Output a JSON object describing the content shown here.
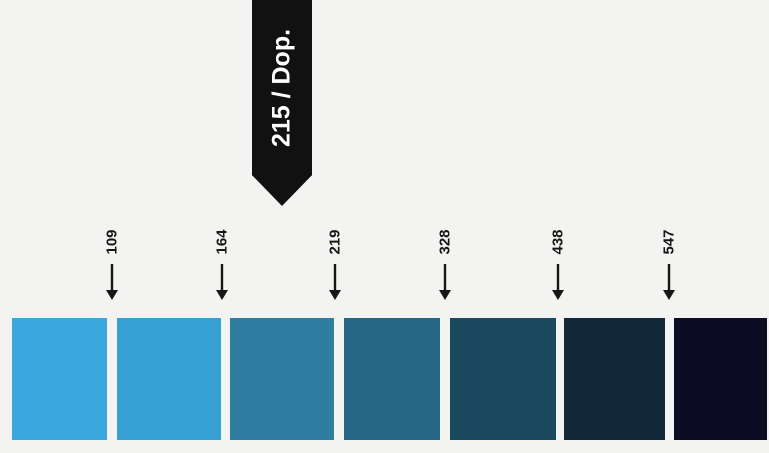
{
  "pointer": {
    "label": "215 / Dop."
  },
  "markers": [
    {
      "label": "109"
    },
    {
      "label": "164"
    },
    {
      "label": "219"
    },
    {
      "label": "328"
    },
    {
      "label": "438"
    },
    {
      "label": "547"
    }
  ],
  "swatches": [
    {
      "color": "#3aa8dc"
    },
    {
      "color": "#37a0d3"
    },
    {
      "color": "#2f7ea1"
    },
    {
      "color": "#256784"
    },
    {
      "color": "#1b4a60"
    },
    {
      "color": "#13283a"
    },
    {
      "color": "#0c0c24"
    }
  ]
}
